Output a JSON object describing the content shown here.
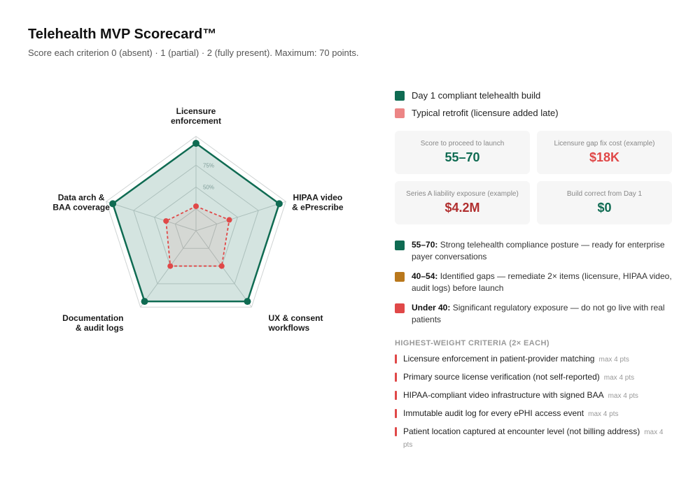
{
  "header": {
    "title": "Telehealth MVP Scorecard™",
    "subtitle": "Score each criterion 0 (absent) · 1 (partial) · 2 (fully present). Maximum: 70 points."
  },
  "chart_data": {
    "type": "radar",
    "axes": [
      [
        "Licensure",
        "enforcement"
      ],
      [
        "HIPAA video",
        "& ePrescribe"
      ],
      [
        "UX & consent",
        "workflows"
      ],
      [
        "Documentation",
        "& audit logs"
      ],
      [
        "Data arch &",
        "BAA coverage"
      ]
    ],
    "scale_max": 100,
    "tick_labels": [
      "75%",
      "50%"
    ],
    "series": [
      {
        "name": "Day 1 compliant telehealth build",
        "color": "#0f6b52",
        "values": [
          100,
          100,
          100,
          100,
          100
        ]
      },
      {
        "name": "Typical retrofit (licensure added late)",
        "color": "#e04848",
        "values": [
          28,
          40,
          50,
          50,
          36
        ]
      }
    ]
  },
  "legend": [
    {
      "label": "Day 1 compliant telehealth build",
      "color": "#0f6b52"
    },
    {
      "label": "Typical retrofit (licensure added late)",
      "color": "#ec8585"
    }
  ],
  "stats": [
    {
      "label": "Score to proceed to launch",
      "value": "55–70",
      "color": "#0f6b52"
    },
    {
      "label": "Licensure gap fix cost (example)",
      "value": "$18K",
      "color": "#e04848"
    },
    {
      "label": "Series A liability exposure (example)",
      "value": "$4.2M",
      "color": "#b12f2f"
    },
    {
      "label": "Build correct from Day 1",
      "value": "$0",
      "color": "#0f6b52"
    }
  ],
  "bands": [
    {
      "range": "55–70:",
      "text": "Strong telehealth compliance posture — ready for enterprise payer conversations",
      "color": "#0f6b52"
    },
    {
      "range": "40–54:",
      "text": "Identified gaps — remediate 2× items (licensure, HIPAA video, audit logs) before launch",
      "color": "#b9781c"
    },
    {
      "range": "Under 40:",
      "text": "Significant regulatory exposure — do not go live with real patients",
      "color": "#e04848"
    }
  ],
  "criteria": {
    "heading": "HIGHEST-WEIGHT CRITERIA (2× EACH)",
    "items": [
      {
        "label": "Licensure enforcement in patient-provider matching",
        "max": "max 4 pts"
      },
      {
        "label": "Primary source license verification (not self-reported)",
        "max": "max 4 pts"
      },
      {
        "label": "HIPAA-compliant video infrastructure with signed BAA",
        "max": "max 4 pts"
      },
      {
        "label": "Immutable audit log for every ePHI access event",
        "max": "max 4 pts"
      },
      {
        "label": "Patient location captured at encounter level (not billing address)",
        "max": "max 4 pts"
      }
    ]
  }
}
